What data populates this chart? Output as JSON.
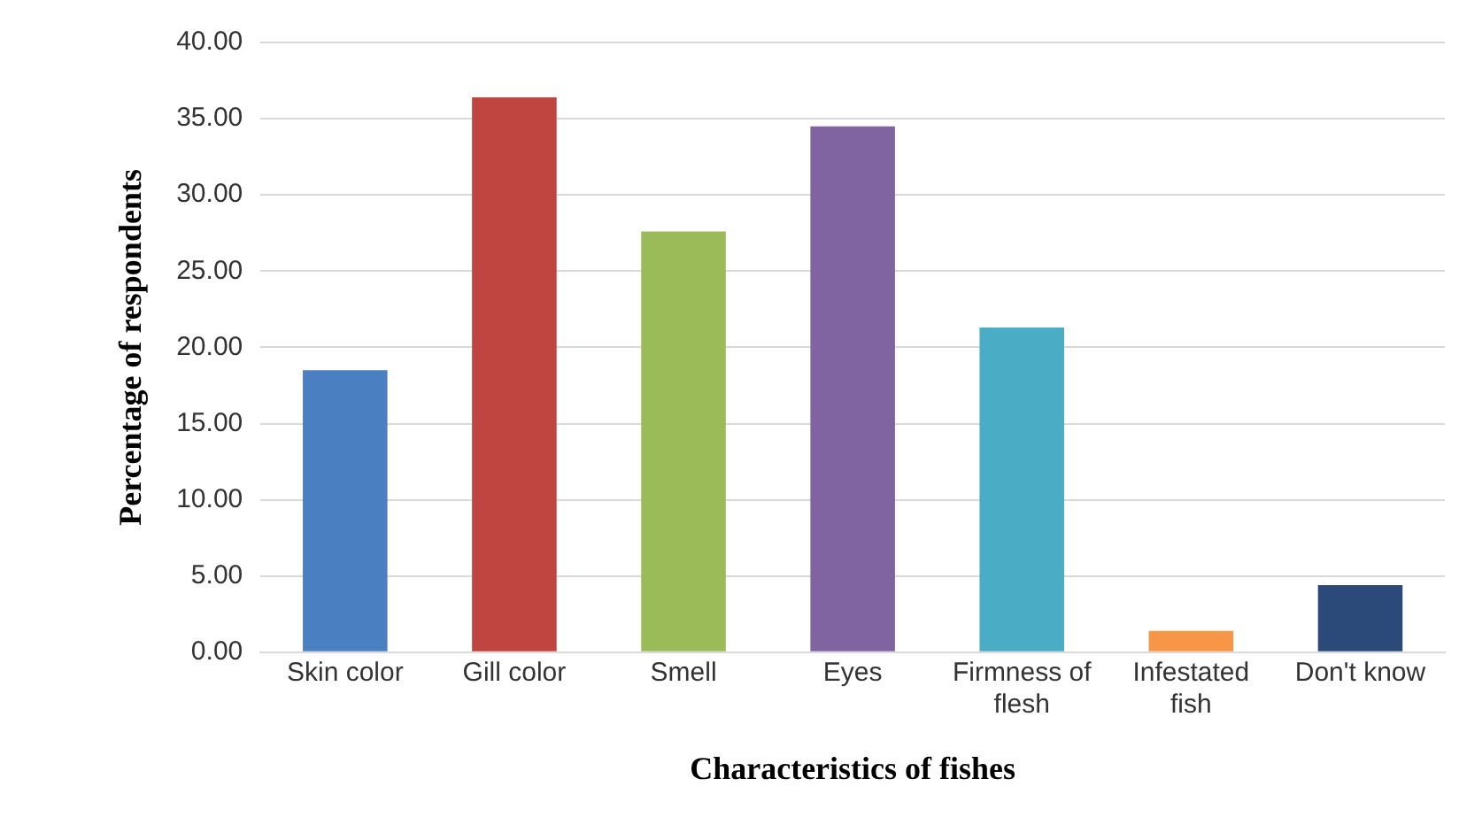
{
  "chart_data": {
    "type": "bar",
    "xlabel": "Characteristics of fishes",
    "ylabel": "Percentage of respondents",
    "categories": [
      "Skin color",
      "Gill color",
      "Smell",
      "Eyes",
      "Firmness of flesh",
      "Infestated fish",
      "Don't know"
    ],
    "values": [
      18.5,
      36.4,
      27.6,
      34.5,
      21.3,
      1.4,
      4.4
    ],
    "colors": [
      "#4a7fc1",
      "#c0443f",
      "#9bbb59",
      "#8064a2",
      "#4bacc6",
      "#f79646",
      "#2b4a7a"
    ],
    "ylim": [
      0,
      40
    ],
    "yticks": [
      {
        "value": 0,
        "label": "0.00"
      },
      {
        "value": 5,
        "label": "5.00"
      },
      {
        "value": 10,
        "label": "10.00"
      },
      {
        "value": 15,
        "label": "15.00"
      },
      {
        "value": 20,
        "label": "20.00"
      },
      {
        "value": 25,
        "label": "25.00"
      },
      {
        "value": 30,
        "label": "30.00"
      },
      {
        "value": 35,
        "label": "35.00"
      },
      {
        "value": 40,
        "label": "40.00"
      }
    ],
    "grid": "y",
    "legend": false
  }
}
